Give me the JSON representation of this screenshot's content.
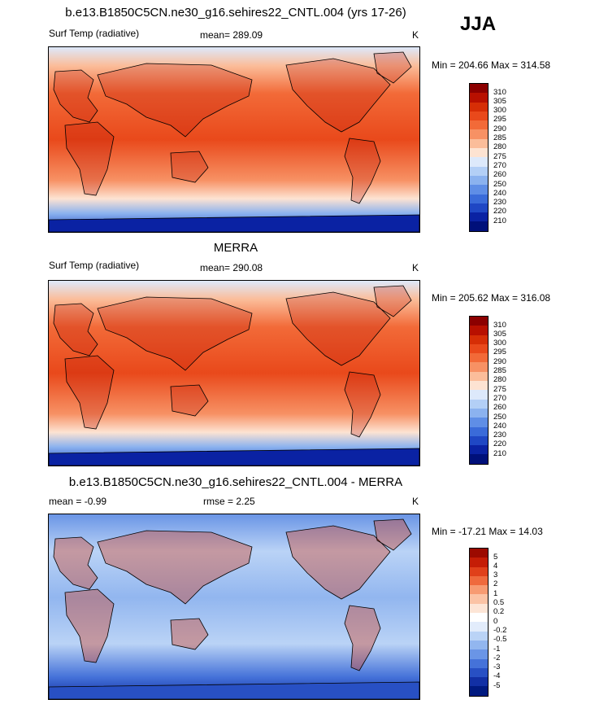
{
  "season": "JJA",
  "panels": [
    {
      "id": "model",
      "title": "b.e13.B1850C5CN.ne30_g16.sehires22_CNTL.004 (yrs 17-26)",
      "left_label": "Surf Temp (radiative)",
      "center_label": "mean= 289.09",
      "units": "K",
      "minmax": "Min = 204.66 Max = 314.58",
      "scale": "abs"
    },
    {
      "id": "obs",
      "title": "MERRA",
      "left_label": "Surf Temp (radiative)",
      "center_label": "mean= 290.08",
      "units": "K",
      "minmax": "Min = 205.62 Max = 316.08",
      "scale": "abs"
    },
    {
      "id": "diff",
      "title": "b.e13.B1850C5CN.ne30_g16.sehires22_CNTL.004 - MERRA",
      "left_label": "mean =  -0.99",
      "center_label": "rmse =   2.25",
      "units": "K",
      "minmax": "Min = -17.21 Max =  14.03",
      "scale": "diff"
    }
  ],
  "abs_scale": {
    "levels": [
      "310",
      "305",
      "300",
      "295",
      "290",
      "285",
      "280",
      "275",
      "270",
      "260",
      "250",
      "240",
      "230",
      "220",
      "210"
    ],
    "colors": [
      "#8c0000",
      "#b81000",
      "#d62e06",
      "#e9491b",
      "#f26a38",
      "#f79164",
      "#fbbd9a",
      "#fde3d2",
      "#dde9fb",
      "#b3cff6",
      "#8bb2ef",
      "#5f8ee6",
      "#3a6bd9",
      "#1f47c4",
      "#0a22a3",
      "#00107a"
    ]
  },
  "diff_scale": {
    "levels": [
      "5",
      "4",
      "3",
      "2",
      "1",
      "0.5",
      "0.2",
      "0",
      "-0.2",
      "-0.5",
      "-1",
      "-2",
      "-3",
      "-4",
      "-5"
    ],
    "colors": [
      "#9c0a00",
      "#c51d06",
      "#e0401a",
      "#ef6a3d",
      "#f79b72",
      "#fbc3a5",
      "#fde5d6",
      "#ffffff",
      "#e2ecfb",
      "#bad3f6",
      "#92b6ef",
      "#6a95e6",
      "#4572d9",
      "#2850c4",
      "#1230a5",
      "#001a80"
    ]
  }
}
